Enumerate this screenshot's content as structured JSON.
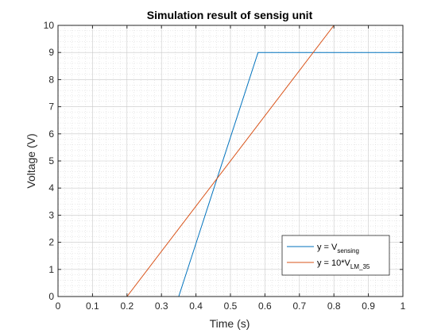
{
  "chart_data": {
    "type": "line",
    "title": "Simulation result of sensig unit",
    "xlabel": "Time (s)",
    "ylabel": "Voltage (V)",
    "xlim": [
      0,
      1
    ],
    "ylim": [
      0,
      10
    ],
    "xticks": [
      "0",
      "0.1",
      "0.2",
      "0.3",
      "0.4",
      "0.5",
      "0.6",
      "0.7",
      "0.8",
      "0.9",
      "1"
    ],
    "yticks": [
      "0",
      "1",
      "2",
      "3",
      "4",
      "5",
      "6",
      "7",
      "8",
      "9",
      "10"
    ],
    "grid": "on (major and minor)",
    "legend_position": "bottom-right",
    "series": [
      {
        "legend_main": "y = V",
        "legend_sub": "sensing",
        "color": "#0072BD",
        "x": [
          0,
          0.35,
          0.58,
          1.0
        ],
        "y": [
          0,
          0,
          9,
          9
        ]
      },
      {
        "legend_main": "y = 10*V",
        "legend_sub": "LM_35",
        "color": "#D95319",
        "x": [
          0,
          0.2,
          0.8,
          1.0
        ],
        "y": [
          0,
          0,
          10,
          10
        ]
      }
    ]
  }
}
